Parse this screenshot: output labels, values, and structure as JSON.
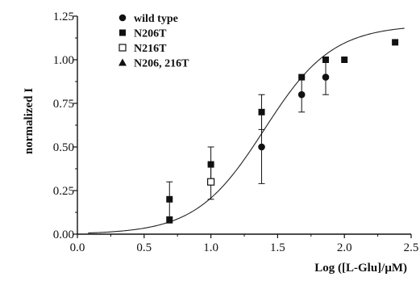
{
  "chart_data": {
    "type": "scatter",
    "xlabel": "Log ([L-Glu]/μM)",
    "ylabel": "normalized I",
    "xlim": [
      0.0,
      2.5
    ],
    "ylim": [
      0.0,
      1.25
    ],
    "xticks": [
      "0.0",
      "0.5",
      "1.0",
      "1.5",
      "2.0",
      "2.5"
    ],
    "yticks": [
      "0.00",
      "0.25",
      "0.50",
      "0.75",
      "1.00",
      "1.25"
    ],
    "grid": false,
    "legend_position": "top-left",
    "series": [
      {
        "name": "wild type",
        "marker": "filled-circle",
        "points": [
          {
            "x": 1.38,
            "y": 0.5,
            "err": 0.21
          },
          {
            "x": 1.68,
            "y": 0.8,
            "err": 0.1
          },
          {
            "x": 1.86,
            "y": 0.9,
            "err": 0.1
          }
        ]
      },
      {
        "name": "N206T",
        "marker": "filled-square",
        "points": [
          {
            "x": 0.69,
            "y": 0.08
          },
          {
            "x": 0.69,
            "y": 0.2,
            "err": 0.1
          },
          {
            "x": 1.0,
            "y": 0.4,
            "err": 0.1
          },
          {
            "x": 1.38,
            "y": 0.7,
            "err": 0.1
          },
          {
            "x": 1.68,
            "y": 0.9
          },
          {
            "x": 1.86,
            "y": 1.0
          },
          {
            "x": 2.0,
            "y": 1.0
          },
          {
            "x": 2.38,
            "y": 1.1
          }
        ]
      },
      {
        "name": "N216T",
        "marker": "open-square",
        "points": [
          {
            "x": 1.0,
            "y": 0.3,
            "err": 0.1
          }
        ]
      },
      {
        "name": "N206, 216T",
        "marker": "filled-triangle",
        "points": []
      }
    ],
    "fit_curve": {
      "type": "hill",
      "top": 1.2,
      "log_ec50": 1.4,
      "hill_slope": 1.7
    },
    "colors": {
      "marker": "#111111",
      "curve": "#222222",
      "axis": "#111111"
    }
  }
}
